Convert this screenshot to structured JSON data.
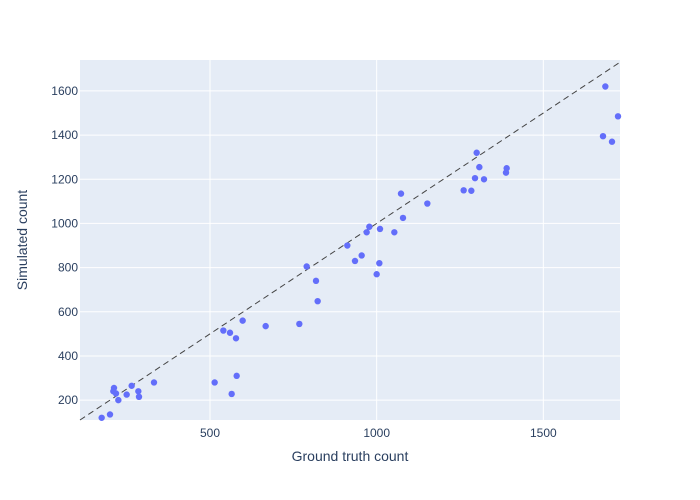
{
  "chart_data": {
    "type": "scatter",
    "title": "",
    "xlabel": "Ground truth count",
    "ylabel": "Simulated count",
    "xlim": [
      110,
      1730
    ],
    "ylim": [
      110,
      1740
    ],
    "x_ticks": [
      500,
      1000,
      1500
    ],
    "y_ticks": [
      200,
      400,
      600,
      800,
      1000,
      1200,
      1400,
      1600
    ],
    "grid": true,
    "reference_line": "y = x (dashed)",
    "colors": {
      "background": "#E5ECF6",
      "grid": "#ffffff",
      "marker": "#636EFA",
      "reference_line": "#444444",
      "text": "#2a3f5f"
    },
    "points": [
      {
        "x": 175,
        "y": 120
      },
      {
        "x": 200,
        "y": 135
      },
      {
        "x": 210,
        "y": 240
      },
      {
        "x": 212,
        "y": 255
      },
      {
        "x": 218,
        "y": 230
      },
      {
        "x": 225,
        "y": 200
      },
      {
        "x": 250,
        "y": 225
      },
      {
        "x": 265,
        "y": 265
      },
      {
        "x": 285,
        "y": 240
      },
      {
        "x": 287,
        "y": 215
      },
      {
        "x": 332,
        "y": 280
      },
      {
        "x": 514,
        "y": 280
      },
      {
        "x": 540,
        "y": 515
      },
      {
        "x": 560,
        "y": 505
      },
      {
        "x": 565,
        "y": 228
      },
      {
        "x": 578,
        "y": 480
      },
      {
        "x": 580,
        "y": 310
      },
      {
        "x": 598,
        "y": 560
      },
      {
        "x": 667,
        "y": 535
      },
      {
        "x": 768,
        "y": 545
      },
      {
        "x": 790,
        "y": 805
      },
      {
        "x": 818,
        "y": 740
      },
      {
        "x": 823,
        "y": 648
      },
      {
        "x": 912,
        "y": 900
      },
      {
        "x": 935,
        "y": 830
      },
      {
        "x": 955,
        "y": 855
      },
      {
        "x": 970,
        "y": 960
      },
      {
        "x": 978,
        "y": 985
      },
      {
        "x": 1000,
        "y": 770
      },
      {
        "x": 1010,
        "y": 975
      },
      {
        "x": 1008,
        "y": 820
      },
      {
        "x": 1053,
        "y": 960
      },
      {
        "x": 1073,
        "y": 1135
      },
      {
        "x": 1079,
        "y": 1025
      },
      {
        "x": 1152,
        "y": 1090
      },
      {
        "x": 1261,
        "y": 1150
      },
      {
        "x": 1284,
        "y": 1148
      },
      {
        "x": 1295,
        "y": 1205
      },
      {
        "x": 1300,
        "y": 1320
      },
      {
        "x": 1308,
        "y": 1255
      },
      {
        "x": 1322,
        "y": 1200
      },
      {
        "x": 1388,
        "y": 1230
      },
      {
        "x": 1390,
        "y": 1250
      },
      {
        "x": 1679,
        "y": 1395
      },
      {
        "x": 1686,
        "y": 1620
      },
      {
        "x": 1706,
        "y": 1370
      },
      {
        "x": 1724,
        "y": 1485
      }
    ]
  }
}
